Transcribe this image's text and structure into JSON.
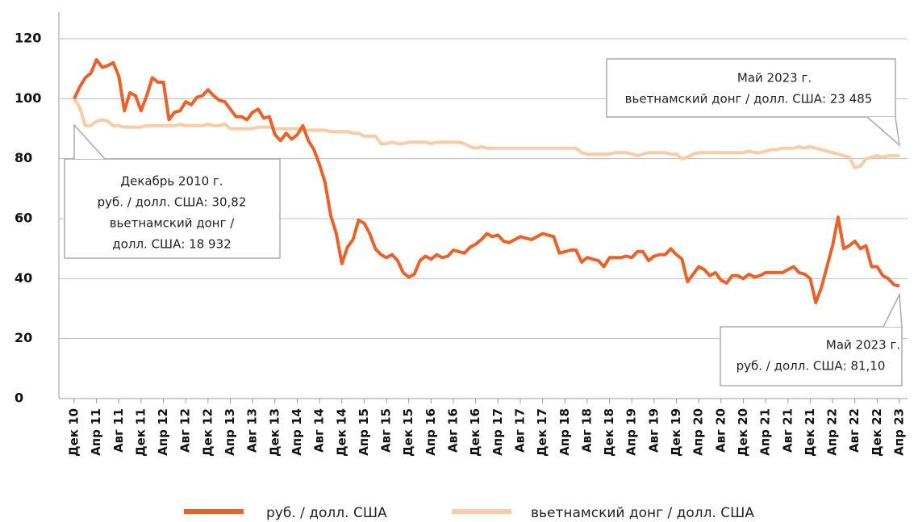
{
  "chart_data": {
    "type": "line",
    "categories": [
      "Дек 10",
      null,
      null,
      null,
      "Апр 11",
      null,
      null,
      null,
      "Авг 11",
      null,
      null,
      null,
      "Дек 11",
      null,
      null,
      null,
      "Апр 12",
      null,
      null,
      null,
      "Авг 12",
      null,
      null,
      null,
      "Дек 12",
      null,
      null,
      null,
      "Апр 13",
      null,
      null,
      null,
      "Авг 13",
      null,
      null,
      null,
      "Дек 13",
      null,
      null,
      null,
      "Апр 14",
      null,
      null,
      null,
      "Авг 14",
      null,
      null,
      null,
      "Дек 14",
      null,
      null,
      null,
      "Апр 15",
      null,
      null,
      null,
      "Авг 15",
      null,
      null,
      null,
      "Дек 15",
      null,
      null,
      null,
      "Апр 16",
      null,
      null,
      null,
      "Авг 16",
      null,
      null,
      null,
      "Дек 16",
      null,
      null,
      null,
      "Апр 17",
      null,
      null,
      null,
      "Авг 17",
      null,
      null,
      null,
      "Дек 17",
      null,
      null,
      null,
      "Апр 18",
      null,
      null,
      null,
      "Авг 18",
      null,
      null,
      null,
      "Дек 18",
      null,
      null,
      null,
      "Апр 19",
      null,
      null,
      null,
      "Авг 19",
      null,
      null,
      null,
      "Дек 19",
      null,
      null,
      null,
      "Апр 20",
      null,
      null,
      null,
      "Авг 20",
      null,
      null,
      null,
      "Дек 20",
      null,
      null,
      null,
      "Апр 21",
      null,
      null,
      null,
      "Авг 21",
      null,
      null,
      null,
      "Дек 21",
      null,
      null,
      null,
      "Апр 22",
      null,
      null,
      null,
      "Авг 22",
      null,
      null,
      null,
      "Дек 22",
      null,
      null,
      null,
      "Апр 23"
    ],
    "series": [
      {
        "name": "руб. / долл. США",
        "color": "#e8622a",
        "values": [
          100,
          104,
          107,
          108.5,
          113,
          110.5,
          111,
          112,
          107.5,
          96,
          102,
          101,
          96,
          101,
          107,
          105.5,
          105.5,
          93,
          95.5,
          96,
          99,
          98,
          100.5,
          101,
          103,
          101,
          99.5,
          99,
          96.5,
          94,
          94,
          93,
          95.5,
          96.5,
          93.5,
          94,
          88,
          86,
          88.5,
          86.5,
          88,
          91,
          86,
          83,
          78,
          72,
          61,
          55,
          45,
          50.5,
          53,
          59.5,
          58.5,
          55,
          50,
          48,
          47,
          48,
          46,
          42,
          40.5,
          41.5,
          46,
          47.5,
          46.5,
          48,
          47,
          47.5,
          49.5,
          49,
          48.5,
          50.5,
          51.5,
          53,
          55,
          54,
          54.5,
          52.5,
          52,
          53,
          54,
          53.5,
          53,
          54,
          55,
          54.5,
          54,
          48.5,
          49,
          49.5,
          49.5,
          45.5,
          47,
          46.5,
          46,
          44,
          47,
          47,
          47,
          47.5,
          47,
          49,
          49,
          46,
          47.5,
          48,
          48,
          50,
          48,
          46.5,
          39,
          41.5,
          44,
          43,
          41,
          42,
          39.5,
          38.5,
          41,
          41,
          40,
          41.5,
          40.5,
          41,
          42,
          42,
          42,
          42,
          43,
          44,
          42,
          41.5,
          40,
          32,
          37,
          44,
          51,
          60.5,
          50,
          51,
          52.5,
          50,
          51,
          44,
          44,
          41,
          40,
          38,
          37.5
        ]
      },
      {
        "name": "вьетнамский донг / долл. США",
        "color": "#f9cba7",
        "values": [
          100,
          97,
          91,
          91,
          92.5,
          93,
          92.5,
          91,
          91,
          90.5,
          90.5,
          90.5,
          90.5,
          91,
          91,
          91,
          91,
          91,
          91,
          91.5,
          91,
          91,
          91,
          91,
          91.5,
          91,
          91,
          91.5,
          90,
          90,
          90,
          90,
          90,
          90.5,
          90.5,
          90.5,
          90,
          90,
          90,
          90,
          90,
          89.5,
          89.5,
          89.5,
          89.5,
          89.5,
          89,
          89,
          89,
          89,
          88.5,
          88.5,
          87.5,
          87.5,
          87.5,
          85,
          85,
          85.5,
          85,
          85,
          85.5,
          85.5,
          85.5,
          85.5,
          85,
          85.5,
          85.5,
          85.5,
          85.5,
          85.5,
          85,
          84,
          83.5,
          84,
          83.5,
          83.5,
          83.5,
          83.5,
          83.5,
          83.5,
          83.5,
          83.5,
          83.5,
          83.5,
          83.5,
          83.5,
          83.5,
          83.5,
          83.5,
          83.5,
          83.5,
          82,
          81.5,
          81.5,
          81.5,
          81.5,
          81.5,
          82,
          82,
          82,
          81.5,
          81,
          81.5,
          82,
          82,
          82,
          82,
          81.5,
          81.5,
          80,
          80.5,
          81.5,
          82,
          82,
          82,
          82,
          82,
          82,
          82,
          82,
          82,
          82.5,
          82,
          82,
          82.5,
          83,
          83,
          83.5,
          83.5,
          83.5,
          84,
          83.5,
          84,
          83.5,
          83,
          82.5,
          82,
          81.5,
          81,
          80.5,
          77,
          77.5,
          80,
          80.5,
          81,
          80.5,
          81,
          81,
          81
        ]
      }
    ],
    "ylim": [
      0,
      125
    ],
    "yticks": [
      0,
      20,
      40,
      60,
      80,
      100,
      120
    ],
    "grid": true,
    "legend": "bottom",
    "annotations": [
      {
        "lines": [
          "Декабрь 2010 г.",
          "руб. / долл. США: 30,82",
          "вьетнамский донг /",
          "долл. США: 18 932"
        ]
      },
      {
        "lines": [
          "Май 2023 г.",
          "вьетнамский донг / долл. США: 23 485"
        ]
      },
      {
        "lines": [
          "Май 2023 г.",
          "руб. / долл. США: 81,10"
        ]
      }
    ]
  }
}
